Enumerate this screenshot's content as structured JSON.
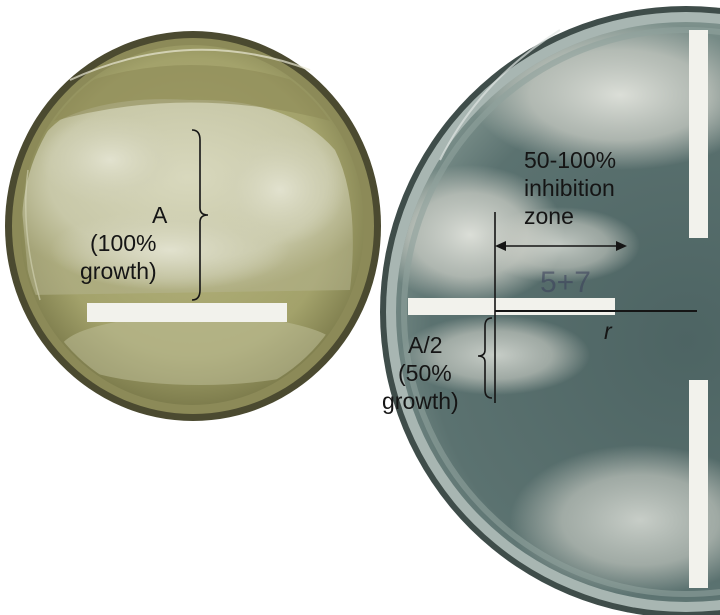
{
  "left_plate": {
    "label_letter": "A",
    "label_percent": "(100%",
    "label_growth": "growth)"
  },
  "right_plate": {
    "zone_line1": "50-100%",
    "zone_line2": "inhibition",
    "zone_line3": "zone",
    "radius_label": "r",
    "half_letter": "A/2",
    "half_percent": "(50%",
    "half_growth": "growth)",
    "plate_marking": "5+7"
  },
  "colors": {
    "left_agar": "#a6a56e",
    "left_fungus": "#cfcfb2",
    "left_rim": "#4a4a33",
    "right_agar": "#5a7170",
    "right_fungus": "#c9ccc4",
    "paper_strip": "#f2f2ec",
    "annotation": "#151515",
    "plate_ink": "#3a3e5a"
  }
}
